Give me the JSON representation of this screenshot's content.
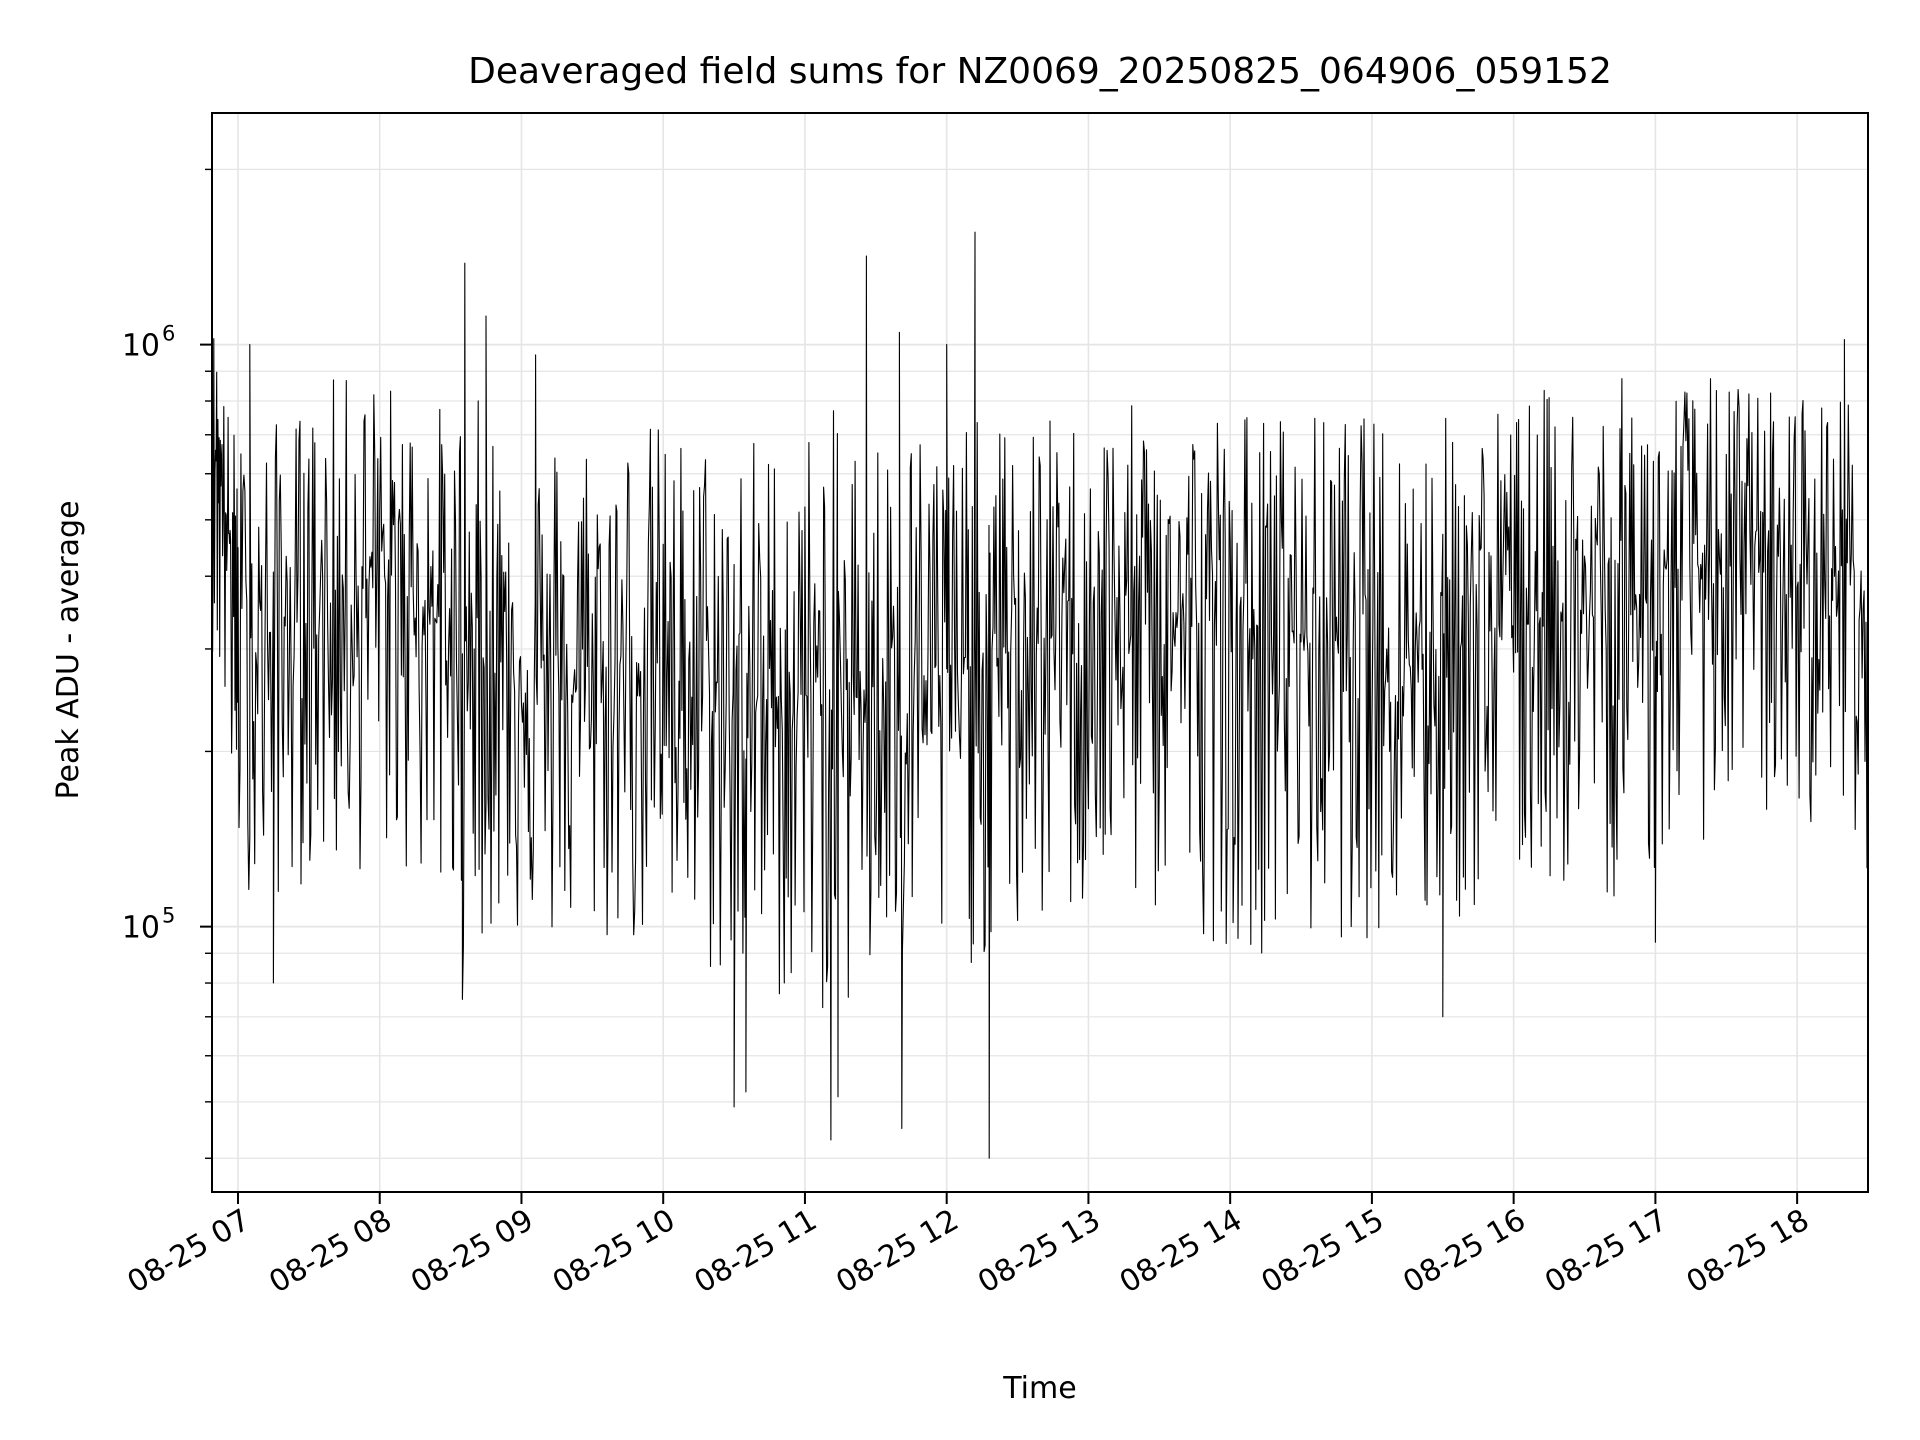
{
  "chart_data": {
    "type": "line",
    "title": "Deaveraged field sums for NZ0069_20250825_064906_059152",
    "xlabel": "Time",
    "ylabel": "Peak ADU - average",
    "y_scale": "log",
    "ylim": [
      35000,
      2500000
    ],
    "xlim": [
      "2025-08-25 06:49",
      "2025-08-25 18:30"
    ],
    "x_ticks": [
      {
        "label": "08-25 07",
        "value": "2025-08-25 07:00"
      },
      {
        "label": "08-25 08",
        "value": "2025-08-25 08:00"
      },
      {
        "label": "08-25 09",
        "value": "2025-08-25 09:00"
      },
      {
        "label": "08-25 10",
        "value": "2025-08-25 10:00"
      },
      {
        "label": "08-25 11",
        "value": "2025-08-25 11:00"
      },
      {
        "label": "08-25 12",
        "value": "2025-08-25 12:00"
      },
      {
        "label": "08-25 13",
        "value": "2025-08-25 13:00"
      },
      {
        "label": "08-25 14",
        "value": "2025-08-25 14:00"
      },
      {
        "label": "08-25 15",
        "value": "2025-08-25 15:00"
      },
      {
        "label": "08-25 16",
        "value": "2025-08-25 16:00"
      },
      {
        "label": "08-25 17",
        "value": "2025-08-25 17:00"
      },
      {
        "label": "08-25 18",
        "value": "2025-08-25 18:00"
      }
    ],
    "y_ticks": [
      {
        "base": "10",
        "exp": "5",
        "value": 100000
      },
      {
        "base": "10",
        "exp": "6",
        "value": 1000000
      }
    ],
    "grid": true,
    "series_color": "#000000",
    "grid_color": "#e5e5e5",
    "series": [
      {
        "x": [
          "2025-08-25 06:49",
          "2025-08-25 06:55",
          "2025-08-25 07:00",
          "2025-08-25 07:10",
          "2025-08-25 07:20",
          "2025-08-25 07:30",
          "2025-08-25 07:40",
          "2025-08-25 07:50",
          "2025-08-25 08:00",
          "2025-08-25 08:10",
          "2025-08-25 08:20",
          "2025-08-25 08:30",
          "2025-08-25 08:40",
          "2025-08-25 08:50",
          "2025-08-25 09:00",
          "2025-08-25 09:10",
          "2025-08-25 09:20",
          "2025-08-25 09:30",
          "2025-08-25 09:40",
          "2025-08-25 09:50",
          "2025-08-25 10:00",
          "2025-08-25 10:10",
          "2025-08-25 10:20",
          "2025-08-25 10:30",
          "2025-08-25 10:40",
          "2025-08-25 10:50",
          "2025-08-25 11:00",
          "2025-08-25 11:10",
          "2025-08-25 11:20",
          "2025-08-25 11:30",
          "2025-08-25 11:40",
          "2025-08-25 11:50",
          "2025-08-25 12:00",
          "2025-08-25 12:10",
          "2025-08-25 12:20",
          "2025-08-25 12:30",
          "2025-08-25 12:40",
          "2025-08-25 12:50",
          "2025-08-25 13:00",
          "2025-08-25 13:10",
          "2025-08-25 13:20",
          "2025-08-25 13:30",
          "2025-08-25 13:40",
          "2025-08-25 13:50",
          "2025-08-25 14:00",
          "2025-08-25 14:10",
          "2025-08-25 14:20",
          "2025-08-25 14:30",
          "2025-08-25 14:40",
          "2025-08-25 14:50",
          "2025-08-25 15:00",
          "2025-08-25 15:10",
          "2025-08-25 15:20",
          "2025-08-25 15:30",
          "2025-08-25 15:40",
          "2025-08-25 15:50",
          "2025-08-25 16:00",
          "2025-08-25 16:10",
          "2025-08-25 16:20",
          "2025-08-25 16:30",
          "2025-08-25 16:40",
          "2025-08-25 16:50",
          "2025-08-25 17:00",
          "2025-08-25 17:10",
          "2025-08-25 17:20",
          "2025-08-25 17:30",
          "2025-08-25 17:40",
          "2025-08-25 17:50",
          "2025-08-25 18:00",
          "2025-08-25 18:10",
          "2025-08-25 18:20",
          "2025-08-25 18:30"
        ],
        "center": [
          780000,
          520000,
          330000,
          300000,
          330000,
          340000,
          350000,
          380000,
          400000,
          390000,
          360000,
          300000,
          290000,
          290000,
          280000,
          260000,
          250000,
          260000,
          270000,
          290000,
          280000,
          250000,
          240000,
          230000,
          240000,
          250000,
          250000,
          240000,
          250000,
          260000,
          270000,
          270000,
          270000,
          280000,
          290000,
          300000,
          310000,
          320000,
          330000,
          340000,
          340000,
          340000,
          340000,
          330000,
          330000,
          320000,
          320000,
          320000,
          310000,
          310000,
          300000,
          300000,
          300000,
          310000,
          320000,
          330000,
          340000,
          350000,
          350000,
          340000,
          340000,
          350000,
          380000,
          400000,
          420000,
          420000,
          410000,
          400000,
          390000,
          380000,
          420000,
          350000
        ],
        "high": [
          1150000,
          800000,
          700000,
          720000,
          760000,
          800000,
          880000,
          900000,
          920000,
          820000,
          800000,
          800000,
          820000,
          780000,
          700000,
          720000,
          750000,
          760000,
          740000,
          760000,
          740000,
          720000,
          720000,
          760000,
          720000,
          700000,
          740000,
          780000,
          760000,
          760000,
          760000,
          770000,
          760000,
          740000,
          740000,
          740000,
          750000,
          760000,
          770000,
          780000,
          790000,
          790000,
          800000,
          800000,
          800000,
          790000,
          780000,
          770000,
          770000,
          770000,
          760000,
          760000,
          760000,
          770000,
          780000,
          800000,
          820000,
          840000,
          860000,
          880000,
          880000,
          880000,
          880000,
          890000,
          890000,
          880000,
          880000,
          860000,
          860000,
          860000,
          880000,
          600000
        ],
        "low": [
          300000,
          200000,
          120000,
          110000,
          110000,
          120000,
          120000,
          120000,
          130000,
          120000,
          110000,
          95000,
          90000,
          95000,
          95000,
          90000,
          90000,
          90000,
          90000,
          90000,
          90000,
          85000,
          80000,
          75000,
          75000,
          72000,
          70000,
          70000,
          70000,
          72000,
          75000,
          78000,
          80000,
          85000,
          85000,
          90000,
          95000,
          100000,
          100000,
          105000,
          105000,
          100000,
          100000,
          95000,
          92000,
          90000,
          90000,
          90000,
          92000,
          95000,
          95000,
          92000,
          90000,
          95000,
          100000,
          105000,
          110000,
          115000,
          115000,
          110000,
          110000,
          115000,
          120000,
          130000,
          140000,
          150000,
          150000,
          150000,
          150000,
          150000,
          160000,
          120000
        ],
        "points_per_interval": 24,
        "spikes": [
          {
            "x": "2025-08-25 08:36",
            "y": 1380000
          },
          {
            "x": "2025-08-25 08:45",
            "y": 1120000
          },
          {
            "x": "2025-08-25 11:26",
            "y": 1420000
          },
          {
            "x": "2025-08-25 11:40",
            "y": 1050000
          },
          {
            "x": "2025-08-25 12:12",
            "y": 1560000
          },
          {
            "x": "2025-08-25 12:00",
            "y": 1000000
          },
          {
            "x": "2025-08-25 07:05",
            "y": 1000000
          },
          {
            "x": "2025-08-25 09:06",
            "y": 960000
          },
          {
            "x": "2025-08-25 18:20",
            "y": 1020000
          }
        ],
        "dips": [
          {
            "x": "2025-08-25 10:30",
            "y": 49000
          },
          {
            "x": "2025-08-25 11:11",
            "y": 43000
          },
          {
            "x": "2025-08-25 11:14",
            "y": 51000
          },
          {
            "x": "2025-08-25 11:41",
            "y": 45000
          },
          {
            "x": "2025-08-25 12:18",
            "y": 40000
          },
          {
            "x": "2025-08-25 10:35",
            "y": 52000
          },
          {
            "x": "2025-08-25 15:30",
            "y": 70000
          },
          {
            "x": "2025-08-25 07:15",
            "y": 80000
          },
          {
            "x": "2025-08-25 08:35",
            "y": 75000
          },
          {
            "x": "2025-08-25 17:00",
            "y": 94000
          }
        ]
      }
    ]
  }
}
